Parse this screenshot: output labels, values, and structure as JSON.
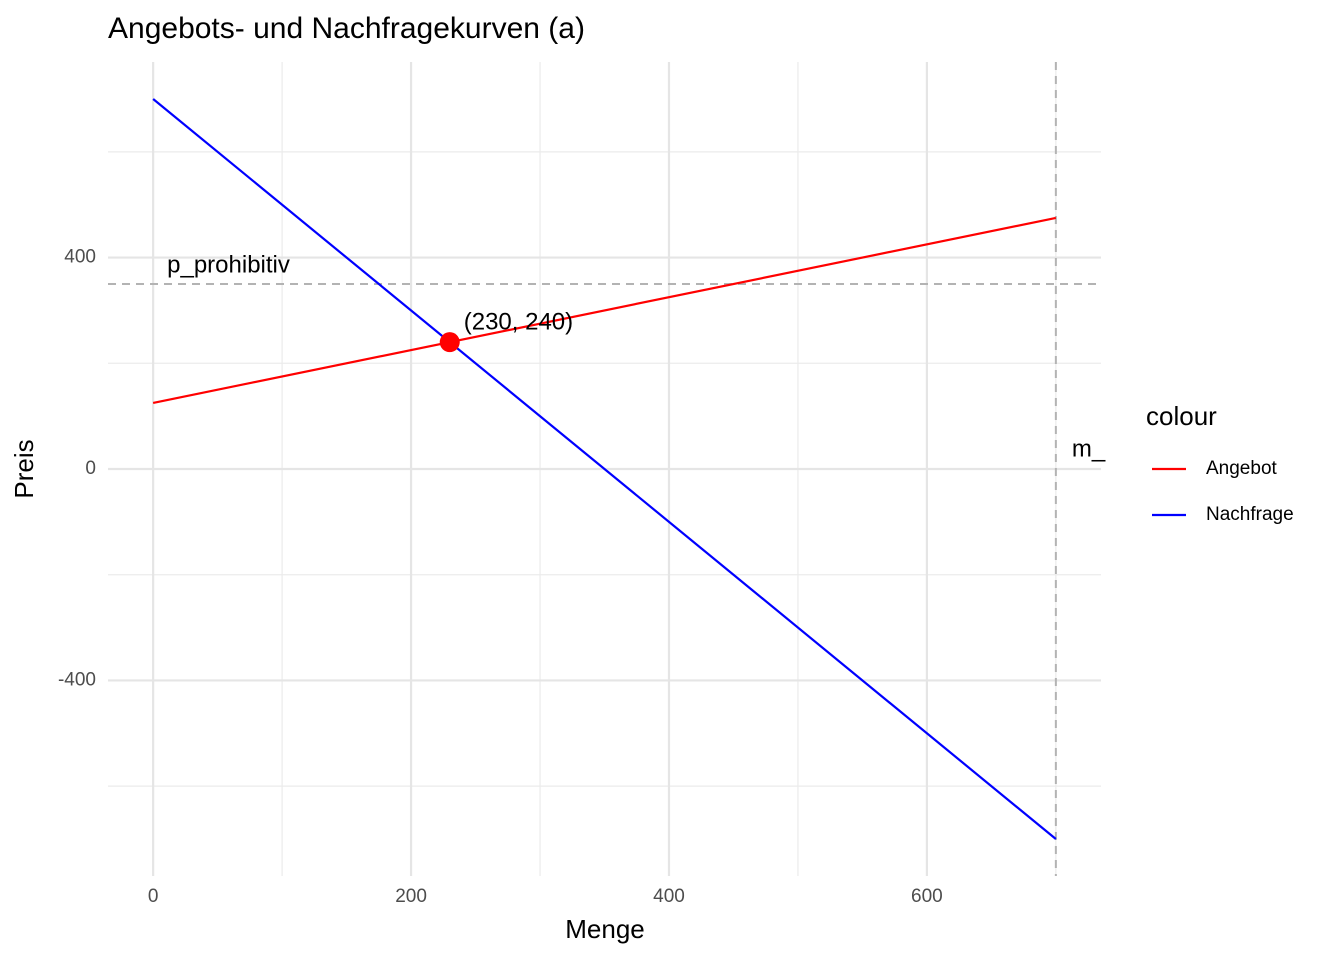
{
  "chart_data": {
    "type": "line",
    "title": "Angebots- und Nachfragekurven (a)",
    "x_label": "Menge",
    "y_label": "Preis",
    "xlim": [
      -35,
      735
    ],
    "ylim": [
      -770,
      770
    ],
    "xticks": [
      0,
      200,
      400,
      600
    ],
    "yticks": [
      -400,
      0,
      400
    ],
    "grid": true,
    "legend_title": "colour",
    "series": [
      {
        "name": "Angebot",
        "color": "#ff0000",
        "x": [
          0,
          700
        ],
        "values": [
          125,
          475
        ]
      },
      {
        "name": "Nachfrage",
        "color": "#0000ff",
        "x": [
          0,
          700
        ],
        "values": [
          700,
          -700
        ]
      }
    ],
    "hline": {
      "value": 350,
      "label": "p_prohibitiv"
    },
    "vline": {
      "value": 700,
      "label": "m_"
    },
    "point": {
      "x": 230,
      "y": 240,
      "label": "(230, 240)",
      "color": "#ff0000"
    }
  }
}
